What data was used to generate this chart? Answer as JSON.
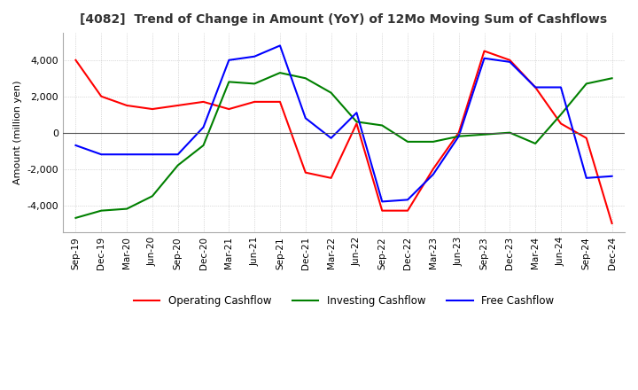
{
  "title": "[4082]  Trend of Change in Amount (YoY) of 12Mo Moving Sum of Cashflows",
  "ylabel": "Amount (million yen)",
  "ylim": [
    -5500,
    5500
  ],
  "yticks": [
    -4000,
    -2000,
    0,
    2000,
    4000
  ],
  "x_labels": [
    "Sep-19",
    "Dec-19",
    "Mar-20",
    "Jun-20",
    "Sep-20",
    "Dec-20",
    "Mar-21",
    "Jun-21",
    "Sep-21",
    "Dec-21",
    "Mar-22",
    "Jun-22",
    "Sep-22",
    "Dec-22",
    "Mar-23",
    "Jun-23",
    "Sep-23",
    "Dec-23",
    "Mar-24",
    "Jun-24",
    "Sep-24",
    "Dec-24"
  ],
  "operating": [
    4000,
    2000,
    1500,
    1300,
    1500,
    1700,
    1300,
    1700,
    1700,
    -2200,
    -2500,
    500,
    -4300,
    -4300,
    -2000,
    0,
    4500,
    4000,
    2500,
    500,
    -300,
    -5000
  ],
  "investing": [
    -4700,
    -4300,
    -4200,
    -3500,
    -1800,
    -700,
    2800,
    2700,
    3300,
    3000,
    2200,
    600,
    400,
    -500,
    -500,
    -200,
    -100,
    0,
    -600,
    1000,
    2700,
    3000
  ],
  "free": [
    -700,
    -1200,
    -1200,
    -1200,
    -1200,
    300,
    4000,
    4200,
    4800,
    800,
    -300,
    1100,
    -3800,
    -3700,
    -2300,
    -200,
    4100,
    3900,
    2500,
    2500,
    -2500,
    -2400
  ],
  "line_colors": {
    "operating": "#ff0000",
    "investing": "#008000",
    "free": "#0000ff"
  },
  "legend_labels": [
    "Operating Cashflow",
    "Investing Cashflow",
    "Free Cashflow"
  ],
  "background_color": "#ffffff",
  "grid_color": "#bbbbbb"
}
